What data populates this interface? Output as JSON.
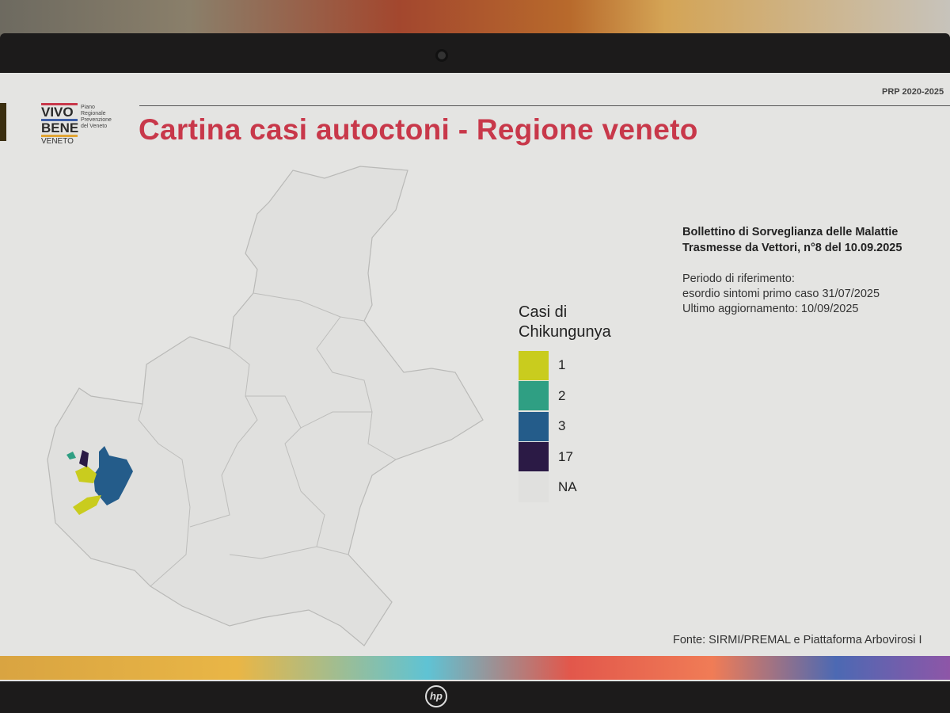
{
  "header": {
    "program": "PRP 2020-2025",
    "title": "Cartina casi autoctoni - Regione veneto"
  },
  "logo": {
    "line1": "VIVO",
    "line2": "BENE",
    "line3": "VENETO",
    "subtitle": [
      "Piano",
      "Regionale",
      "Prevenzione",
      "del Veneto"
    ]
  },
  "info": {
    "bulletin": [
      "Bollettino di Sorveglianza delle Malattie",
      "Trasmesse da Vettori, n°8 del 10.09.2025"
    ],
    "period": [
      "Periodo di riferimento:",
      "esordio sintomi primo caso 31/07/2025",
      "Ultimo aggiornamento: 10/09/2025"
    ]
  },
  "legend": {
    "title": [
      "Casi di",
      "Chikungunya"
    ],
    "items": [
      {
        "label": "1",
        "color": "#c9cc1e"
      },
      {
        "label": "2",
        "color": "#2f9f83"
      },
      {
        "label": "3",
        "color": "#245c8a"
      },
      {
        "label": "17",
        "color": "#2b1a45"
      },
      {
        "label": "NA",
        "color": "#e0e0de"
      }
    ]
  },
  "source": "Fonte: SIRMI/PREMAL e Piattaforma Arbovirosi I",
  "device": {
    "brand": "hp"
  }
}
